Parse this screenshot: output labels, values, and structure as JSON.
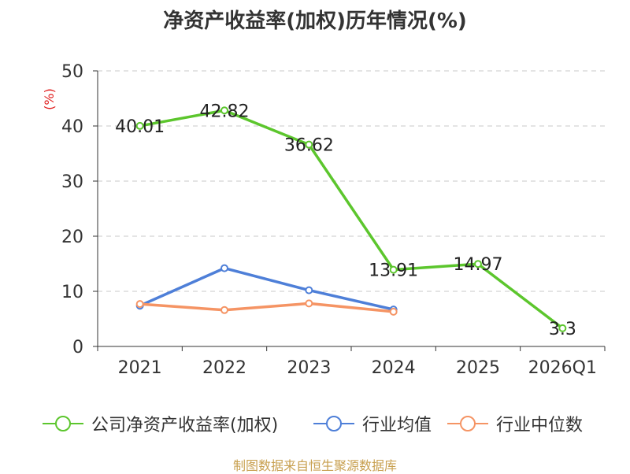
{
  "chart_data": {
    "type": "line",
    "title": "净资产收益率(加权)历年情况(%)",
    "ylabel": "(%)",
    "xlabel": "",
    "categories": [
      "2021",
      "2022",
      "2023",
      "2024",
      "2025",
      "2026Q1"
    ],
    "ylim": [
      0,
      50
    ],
    "yticks": [
      0,
      10,
      20,
      30,
      40,
      50
    ],
    "grid": true,
    "series": [
      {
        "name": "公司净资产收益率(加权)",
        "color": "#5cc62d",
        "values": [
          40.01,
          42.82,
          36.62,
          13.91,
          14.97,
          3.3
        ],
        "labels": [
          "40.01",
          "42.82",
          "36.62",
          "13.91",
          "14.97",
          "3.3"
        ]
      },
      {
        "name": "行业均值",
        "color": "#4e7fd8",
        "values": [
          7.4,
          14.2,
          10.2,
          6.7,
          null,
          null
        ]
      },
      {
        "name": "行业中位数",
        "color": "#f59464",
        "values": [
          7.7,
          6.6,
          7.8,
          6.3,
          null,
          null
        ]
      }
    ],
    "legend_position": "bottom"
  },
  "source": "制图数据来自恒生聚源数据库"
}
